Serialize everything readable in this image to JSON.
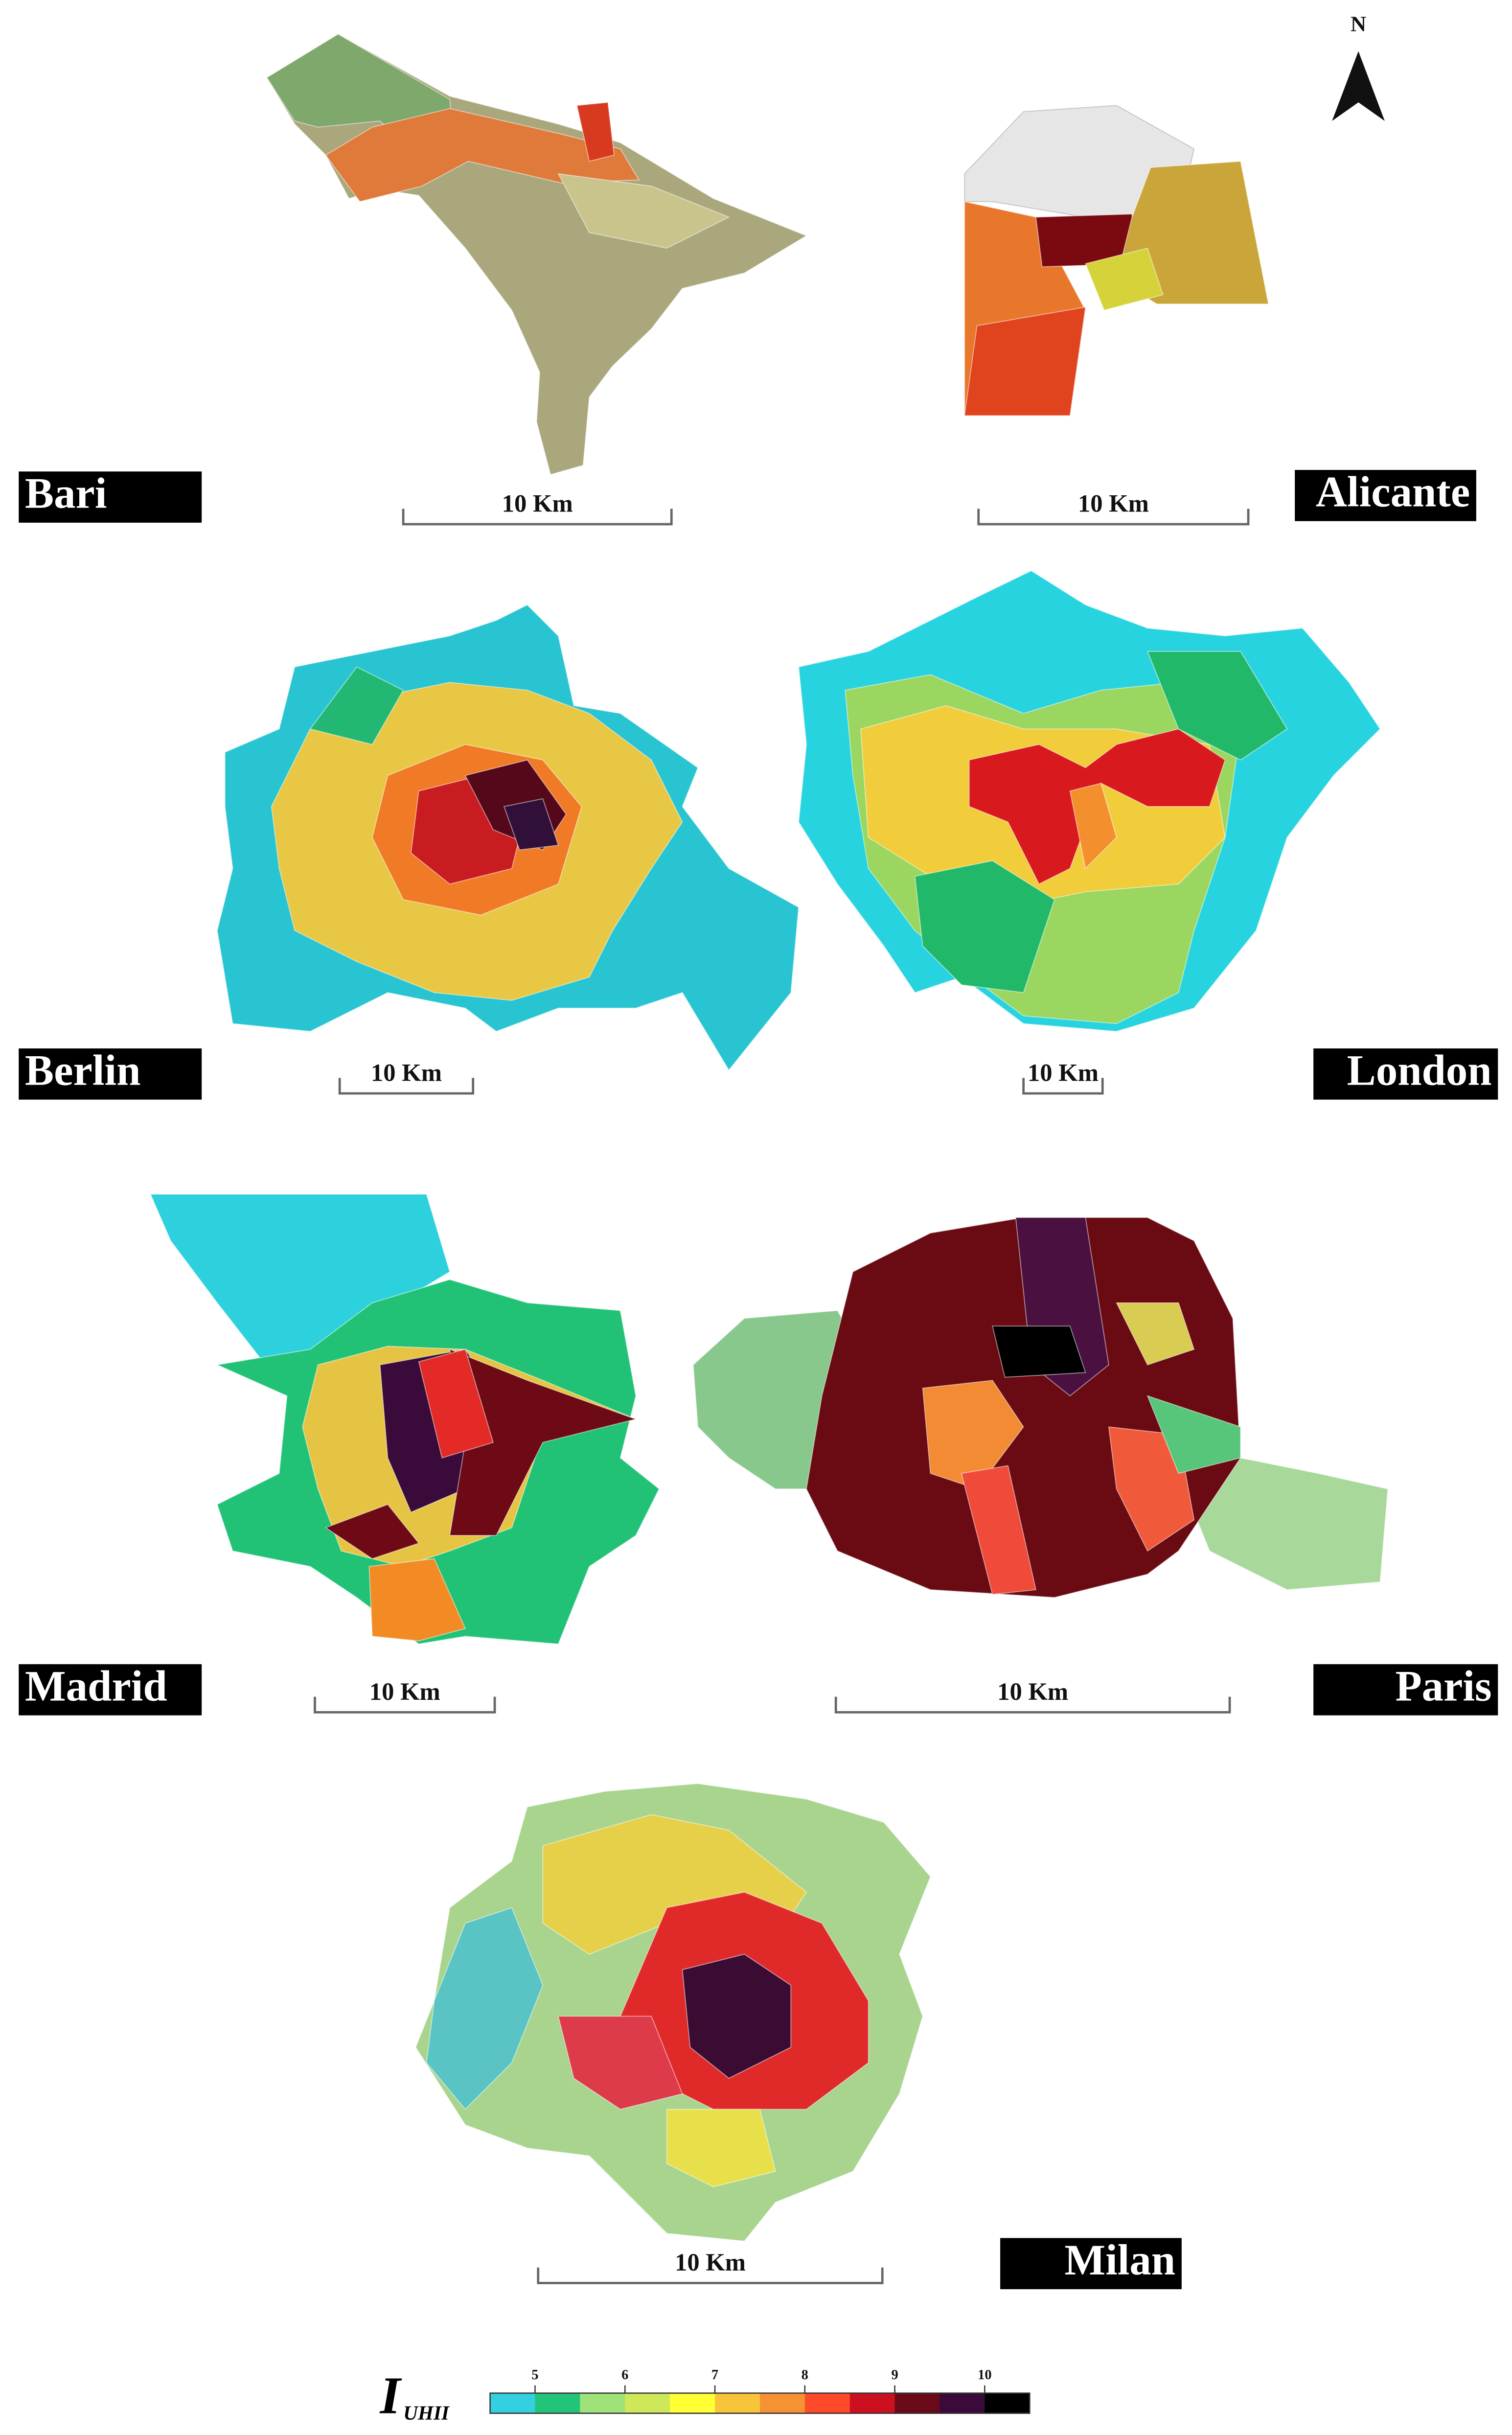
{
  "north": "N",
  "cities": [
    {
      "name": "Bari",
      "scale": "10 Km"
    },
    {
      "name": "Alicante",
      "scale": "10 Km"
    },
    {
      "name": "Berlin",
      "scale": "10 Km"
    },
    {
      "name": "London",
      "scale": "10 Km"
    },
    {
      "name": "Madrid",
      "scale": "10 Km"
    },
    {
      "name": "Paris",
      "scale": "10 Km"
    },
    {
      "name": "Milan",
      "scale": "10 Km"
    }
  ],
  "legend": {
    "title": "I",
    "subscript": "UHII",
    "range": [
      4.5,
      10.5
    ],
    "ticks": [
      5,
      6,
      7,
      8,
      9,
      10
    ],
    "colors": [
      "#33d0e0",
      "#22c477",
      "#9fe27a",
      "#cfe85a",
      "#ffff33",
      "#f8c53a",
      "#f79234",
      "#ff4a2a",
      "#cc1020",
      "#6a0a18",
      "#3a0a3a",
      "#000000"
    ]
  }
}
